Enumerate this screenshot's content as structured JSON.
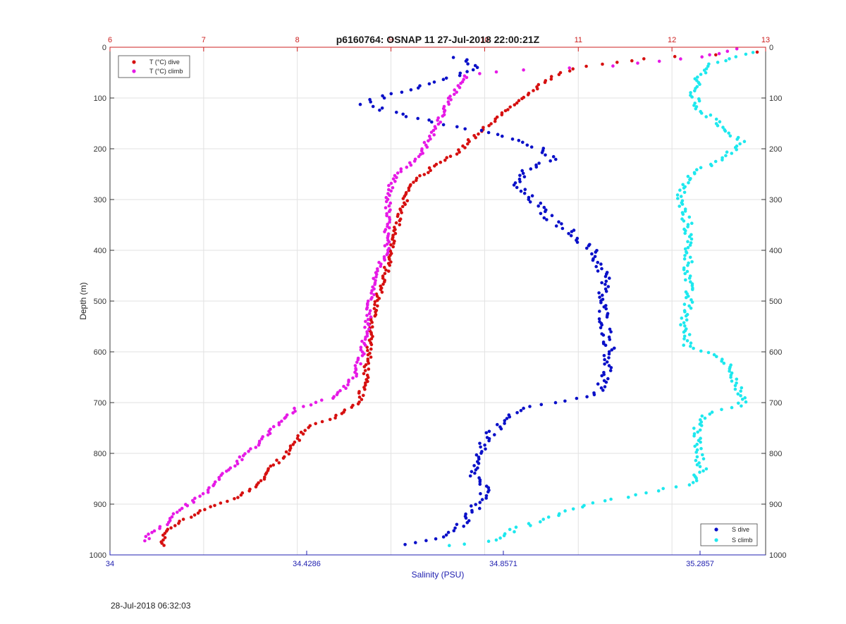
{
  "timestamp": "28-Jul-2018 06:32:03",
  "colors": {
    "t_dive": "#d61010",
    "t_climb": "#e61ae6",
    "s_dive": "#0a10c8",
    "s_climb": "#1ee8ee",
    "top_axis": "#cc2020",
    "bottom_axis": "#2020b0",
    "depth_axis": "#333333"
  },
  "chart_data": {
    "type": "scatter",
    "title": "p6160764: OSNAP 11 27-Jul-2018 22:00:21Z",
    "ylabel": "Depth (m)",
    "xlabel": "Salinity (PSU)",
    "depth_ticks": [
      "0",
      "100",
      "200",
      "300",
      "400",
      "500",
      "600",
      "700",
      "800",
      "900",
      "1000"
    ],
    "temperature_ticks": [
      "6",
      "7",
      "8",
      "9",
      "10",
      "11",
      "12",
      "13"
    ],
    "salinity_ticks": [
      "34",
      "34.4286",
      "34.8571",
      "35.2857"
    ],
    "depth_range": [
      0,
      1000
    ],
    "temperature_range": [
      6,
      13
    ],
    "salinity_range": [
      34,
      35.4286
    ],
    "grid": true,
    "legend_top": {
      "placement": "top-left",
      "items": [
        "T (°C) dive",
        "T (°C) climb"
      ]
    },
    "legend_bottom": {
      "placement": "bottom-right",
      "items": [
        "S dive",
        "S climb"
      ]
    },
    "series": [
      {
        "name": "T (°C) dive",
        "axis": "temperature",
        "profile": [
          [
            12.9,
            10
          ],
          [
            11.8,
            20
          ],
          [
            11,
            40
          ],
          [
            10.9,
            45
          ],
          [
            10.7,
            60
          ],
          [
            10.4,
            100
          ],
          [
            10.2,
            130
          ],
          [
            10.0,
            160
          ],
          [
            9.8,
            190
          ],
          [
            9.7,
            210
          ],
          [
            9.5,
            230
          ],
          [
            9.2,
            270
          ],
          [
            9.15,
            300
          ],
          [
            9.1,
            330
          ],
          [
            9.05,
            360
          ],
          [
            9.0,
            400
          ],
          [
            8.95,
            440
          ],
          [
            8.9,
            470
          ],
          [
            8.85,
            500
          ],
          [
            8.8,
            540
          ],
          [
            8.78,
            580
          ],
          [
            8.75,
            620
          ],
          [
            8.72,
            660
          ],
          [
            8.65,
            700
          ],
          [
            8.4,
            730
          ],
          [
            8.1,
            750
          ],
          [
            7.9,
            800
          ],
          [
            7.7,
            830
          ],
          [
            7.6,
            860
          ],
          [
            7.3,
            890
          ],
          [
            6.9,
            920
          ],
          [
            6.6,
            950
          ],
          [
            6.55,
            970
          ],
          [
            6.55,
            985
          ]
        ]
      },
      {
        "name": "T (°C) climb",
        "axis": "temperature",
        "profile": [
          [
            12.8,
            0
          ],
          [
            12.3,
            20
          ],
          [
            11.5,
            35
          ],
          [
            10.3,
            45
          ],
          [
            9.8,
            55
          ],
          [
            9.75,
            70
          ],
          [
            9.6,
            110
          ],
          [
            9.5,
            150
          ],
          [
            9.35,
            200
          ],
          [
            9.2,
            230
          ],
          [
            9.05,
            250
          ],
          [
            9.0,
            270
          ],
          [
            8.97,
            300
          ],
          [
            8.96,
            350
          ],
          [
            8.95,
            400
          ],
          [
            8.85,
            450
          ],
          [
            8.78,
            500
          ],
          [
            8.75,
            550
          ],
          [
            8.7,
            600
          ],
          [
            8.6,
            650
          ],
          [
            8.4,
            690
          ],
          [
            8.0,
            710
          ],
          [
            7.8,
            740
          ],
          [
            7.6,
            780
          ],
          [
            7.4,
            810
          ],
          [
            7.2,
            840
          ],
          [
            7.0,
            880
          ],
          [
            6.75,
            910
          ],
          [
            6.6,
            940
          ],
          [
            6.4,
            960
          ],
          [
            6.4,
            975
          ]
        ]
      },
      {
        "name": "S dive",
        "axis": "salinity",
        "profile": [
          [
            34.76,
            20
          ],
          [
            34.8,
            40
          ],
          [
            34.74,
            60
          ],
          [
            34.55,
            110
          ],
          [
            34.6,
            125
          ],
          [
            34.72,
            150
          ],
          [
            34.85,
            170
          ],
          [
            34.9,
            190
          ],
          [
            34.94,
            200
          ],
          [
            34.96,
            220
          ],
          [
            34.91,
            240
          ],
          [
            34.88,
            270
          ],
          [
            34.92,
            300
          ],
          [
            34.96,
            340
          ],
          [
            35.0,
            360
          ],
          [
            35.05,
            400
          ],
          [
            35.06,
            420
          ],
          [
            35.08,
            450
          ],
          [
            35.07,
            500
          ],
          [
            35.08,
            550
          ],
          [
            35.09,
            600
          ],
          [
            35.08,
            650
          ],
          [
            35.06,
            680
          ],
          [
            34.98,
            700
          ],
          [
            34.9,
            710
          ],
          [
            34.87,
            730
          ],
          [
            34.83,
            760
          ],
          [
            34.8,
            800
          ],
          [
            34.79,
            840
          ],
          [
            34.82,
            870
          ],
          [
            34.8,
            900
          ],
          [
            34.78,
            930
          ],
          [
            34.75,
            950
          ],
          [
            34.7,
            970
          ],
          [
            34.64,
            980
          ]
        ]
      },
      {
        "name": "S climb",
        "axis": "salinity",
        "profile": [
          [
            35.4,
            10
          ],
          [
            35.32,
            30
          ],
          [
            35.28,
            60
          ],
          [
            35.27,
            90
          ],
          [
            35.28,
            120
          ],
          [
            35.34,
            160
          ],
          [
            35.38,
            190
          ],
          [
            35.33,
            220
          ],
          [
            35.27,
            250
          ],
          [
            35.25,
            270
          ],
          [
            35.24,
            300
          ],
          [
            35.26,
            350
          ],
          [
            35.26,
            400
          ],
          [
            35.26,
            450
          ],
          [
            35.26,
            500
          ],
          [
            35.25,
            550
          ],
          [
            35.26,
            590
          ],
          [
            35.33,
            610
          ],
          [
            35.36,
            640
          ],
          [
            35.37,
            680
          ],
          [
            35.38,
            705
          ],
          [
            35.3,
            720
          ],
          [
            35.28,
            750
          ],
          [
            35.28,
            790
          ],
          [
            35.29,
            830
          ],
          [
            35.27,
            860
          ],
          [
            35.1,
            890
          ],
          [
            35.0,
            910
          ],
          [
            34.95,
            930
          ],
          [
            34.88,
            950
          ],
          [
            34.85,
            970
          ],
          [
            34.72,
            985
          ]
        ]
      }
    ]
  }
}
